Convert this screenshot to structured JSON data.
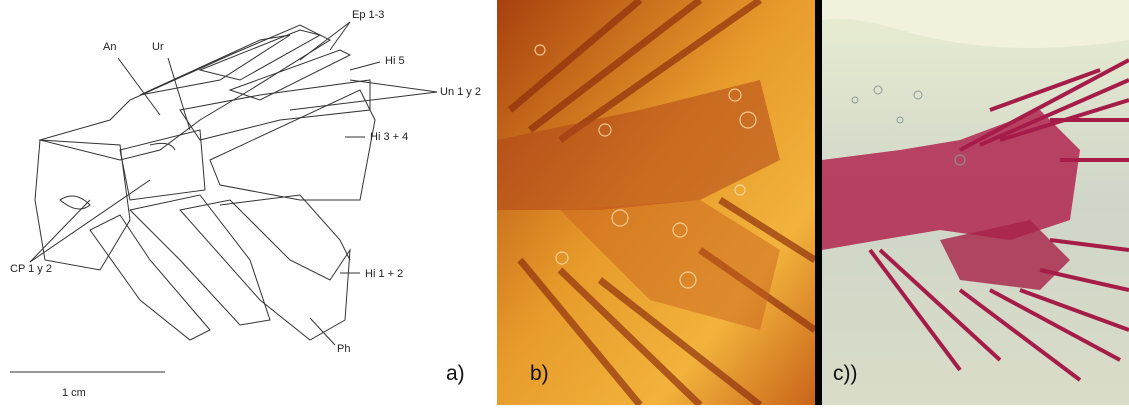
{
  "panels": [
    {
      "label": "a)",
      "annotations": [
        "Ep 1-3",
        "An",
        "Ur",
        "Hi 5",
        "Un 1 y 2",
        "Hi 3 + 4",
        "CP 1 y 2",
        "Hi 1 + 2",
        "Ph"
      ],
      "scale_bar": "1 cm"
    },
    {
      "label": "b)"
    },
    {
      "label": "c))"
    }
  ]
}
